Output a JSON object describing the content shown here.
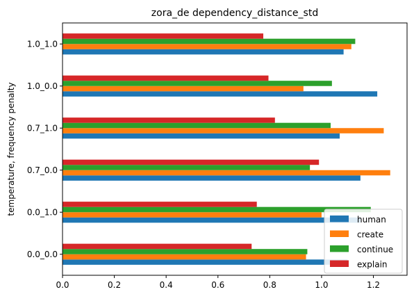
{
  "chart_data": {
    "type": "bar",
    "orientation": "horizontal",
    "title": "zora_de dependency_distance_std",
    "xlabel": "",
    "ylabel": "temperature, frequency penalty",
    "xlim": [
      0,
      1.33
    ],
    "xticks": [
      0.0,
      0.2,
      0.4,
      0.6,
      0.8,
      1.0,
      1.2
    ],
    "xtick_labels": [
      "0.0",
      "0.2",
      "0.4",
      "0.6",
      "0.8",
      "1.0",
      "1.2"
    ],
    "categories": [
      "0.0_0.0",
      "0.0_1.0",
      "0.7_0.0",
      "0.7_1.0",
      "1.0_0.0",
      "1.0_1.0"
    ],
    "series": [
      {
        "name": "human",
        "color": "#1f77b4",
        "values": [
          1.1,
          1.15,
          1.15,
          1.07,
          1.215,
          1.085
        ]
      },
      {
        "name": "create",
        "color": "#ff7f0e",
        "values": [
          0.94,
          1.0,
          1.265,
          1.24,
          0.93,
          1.115
        ]
      },
      {
        "name": "continue",
        "color": "#2ca02c",
        "values": [
          0.945,
          1.19,
          0.955,
          1.035,
          1.04,
          1.13
        ]
      },
      {
        "name": "explain",
        "color": "#d62728",
        "values": [
          0.73,
          0.75,
          0.99,
          0.82,
          0.795,
          0.775
        ]
      }
    ],
    "legend_position": "lower-right",
    "grid": false
  }
}
